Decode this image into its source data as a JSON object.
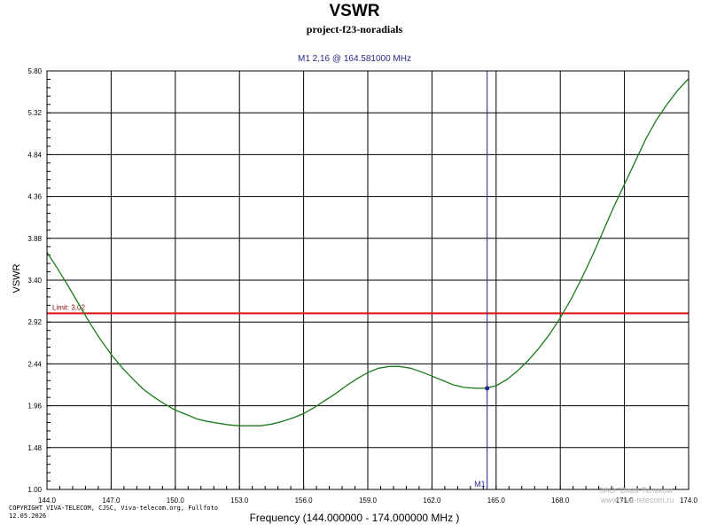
{
  "title": "VSWR",
  "subtitle": "project-f23-noradials",
  "marker_readout": "M1  2,16 @ 164.581000 MHz",
  "copyright": [
    "COPYRIGHT VIVA-TELECOM, CJSC, Viva-telecom.org, Fullfoto",
    "12.05.2026"
  ],
  "watermark": [
    "ЗАО \"Вива-Телеком\"",
    "www.viva-telecom.ru"
  ],
  "colors": {
    "curve": "#1a7a1a",
    "limit": "#e01010",
    "marker": "#202090",
    "grid": "#000000"
  },
  "chart_data": {
    "type": "line",
    "title": "VSWR",
    "subtitle": "project-f23-noradials",
    "xlabel": "Frequency (144.000000 - 174.000000 MHz )",
    "ylabel": "VSWR",
    "xlim": [
      144.0,
      174.0
    ],
    "ylim": [
      1.0,
      5.8
    ],
    "x_ticks": [
      "144.0",
      "147.0",
      "150.0",
      "153.0",
      "156.0",
      "159.0",
      "162.0",
      "165.0",
      "168.0",
      "171.0",
      "174.0"
    ],
    "y_ticks": [
      "1.00",
      "1.48",
      "1.96",
      "2.44",
      "2.92",
      "3.40",
      "3.88",
      "4.36",
      "4.84",
      "5.32",
      "5.80"
    ],
    "grid": true,
    "series": [
      {
        "x": [
          144.0,
          144.5,
          145.0,
          145.5,
          146.0,
          146.5,
          147.0,
          147.5,
          148.0,
          148.5,
          149.0,
          149.5,
          150.0,
          150.5,
          151.0,
          151.5,
          152.0,
          152.5,
          153.0,
          153.5,
          154.0,
          154.5,
          155.0,
          155.5,
          156.0,
          156.5,
          157.0,
          157.5,
          158.0,
          158.5,
          159.0,
          159.5,
          160.0,
          160.5,
          161.0,
          161.5,
          162.0,
          162.5,
          163.0,
          163.5,
          164.0,
          164.5,
          165.0,
          165.5,
          166.0,
          166.5,
          167.0,
          167.5,
          168.0,
          168.5,
          169.0,
          169.5,
          170.0,
          170.5,
          171.0,
          171.5,
          172.0,
          172.5,
          173.0,
          173.5,
          174.0
        ],
        "values": [
          3.72,
          3.53,
          3.33,
          3.12,
          2.91,
          2.72,
          2.55,
          2.4,
          2.27,
          2.15,
          2.06,
          1.98,
          1.91,
          1.86,
          1.81,
          1.78,
          1.76,
          1.74,
          1.73,
          1.73,
          1.73,
          1.75,
          1.78,
          1.82,
          1.87,
          1.94,
          2.02,
          2.1,
          2.19,
          2.27,
          2.34,
          2.39,
          2.41,
          2.41,
          2.39,
          2.35,
          2.3,
          2.25,
          2.2,
          2.17,
          2.16,
          2.16,
          2.19,
          2.26,
          2.36,
          2.48,
          2.62,
          2.78,
          2.97,
          3.18,
          3.42,
          3.68,
          3.96,
          4.24,
          4.5,
          4.76,
          5.02,
          5.24,
          5.42,
          5.58,
          5.71
        ]
      }
    ],
    "limit": {
      "label": "Limit: 3,02",
      "value": 3.02
    },
    "marker": {
      "label": "M1",
      "x": 164.581,
      "y": 2.16
    }
  }
}
